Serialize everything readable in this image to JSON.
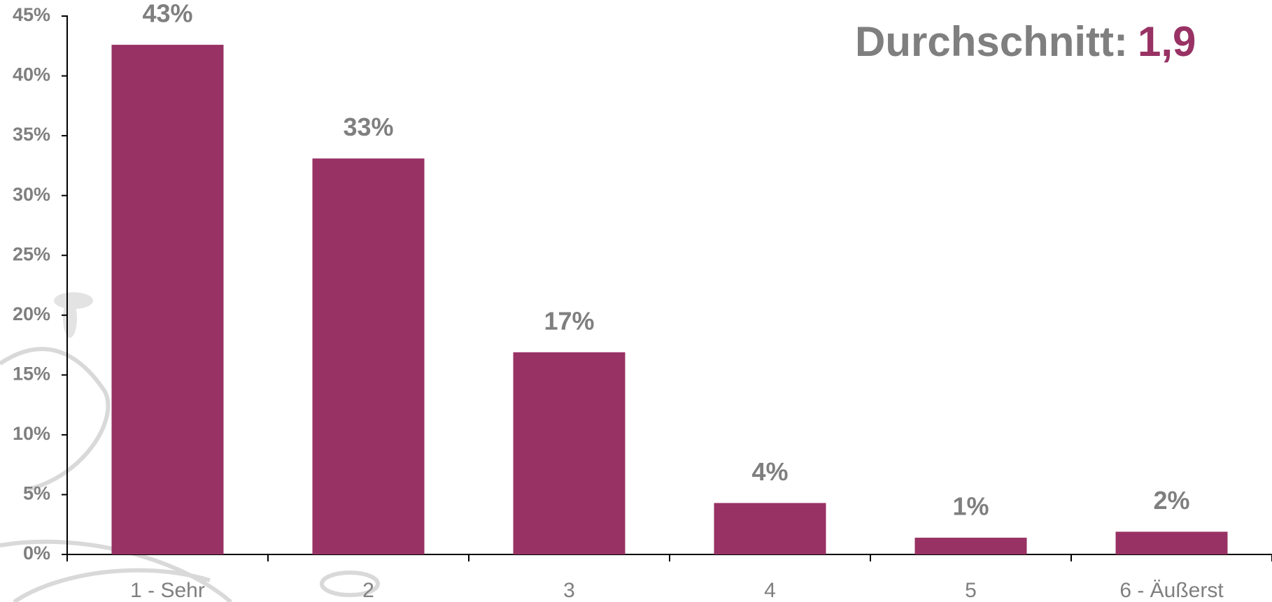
{
  "chart_data": {
    "type": "bar",
    "annotation": {
      "label": "Durchschnitt:",
      "value": "1,9"
    },
    "categories": [
      "1 - Sehr",
      "2",
      "3",
      "4",
      "5",
      "6 - Äußerst"
    ],
    "values": [
      42.6,
      33.1,
      16.9,
      4.3,
      1.4,
      1.9
    ],
    "value_labels": [
      "43%",
      "33%",
      "17%",
      "4%",
      "1%",
      "2%"
    ],
    "color": "#983264",
    "ylim": [
      0,
      45
    ],
    "yticks": [
      {
        "value": 0,
        "label": "0%"
      },
      {
        "value": 5,
        "label": "5%"
      },
      {
        "value": 10,
        "label": "10%"
      },
      {
        "value": 15,
        "label": "15%"
      },
      {
        "value": 20,
        "label": "20%"
      },
      {
        "value": 25,
        "label": "25%"
      },
      {
        "value": 30,
        "label": "30%"
      },
      {
        "value": 35,
        "label": "35%"
      },
      {
        "value": 40,
        "label": "40%"
      },
      {
        "value": 45,
        "label": "45%"
      }
    ],
    "grid": false
  }
}
